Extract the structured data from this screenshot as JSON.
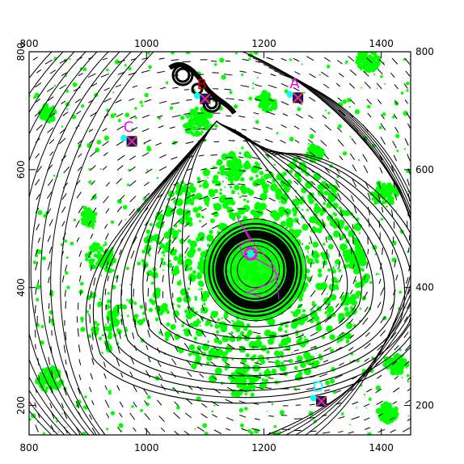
{
  "chart_data": {
    "type": "scatter",
    "title": "",
    "xlabel": "",
    "ylabel": "",
    "xlim": [
      800,
      1450
    ],
    "ylim": [
      150,
      800
    ],
    "x_ticks": [
      {
        "value": 800,
        "label": "800"
      },
      {
        "value": 1000,
        "label": "1000"
      },
      {
        "value": 1200,
        "label": "1200"
      },
      {
        "value": 1400,
        "label": "1400"
      }
    ],
    "y_ticks": [
      {
        "value": 200,
        "label": "200"
      },
      {
        "value": 400,
        "label": "400"
      },
      {
        "value": 600,
        "label": "600"
      },
      {
        "value": 800,
        "label": "800"
      }
    ],
    "ticks_on_all_sides": true,
    "grid": false,
    "contour_center": [
      1185,
      430
    ],
    "sources": [
      {
        "label": "A",
        "x": 1258,
        "y": 722,
        "color": "#ff00ff"
      },
      {
        "label": "B",
        "x": 1100,
        "y": 720,
        "color": "#cc0000"
      },
      {
        "label": "C",
        "x": 975,
        "y": 648,
        "color": "#ff00ff"
      },
      {
        "label": "D",
        "x": 1298,
        "y": 207,
        "color": "#00ffff"
      }
    ],
    "colors": {
      "contours": "#000000",
      "diffuse_emission": "#00ff00",
      "tracks": "#ff00ff",
      "highlight": "#00ffff"
    }
  }
}
